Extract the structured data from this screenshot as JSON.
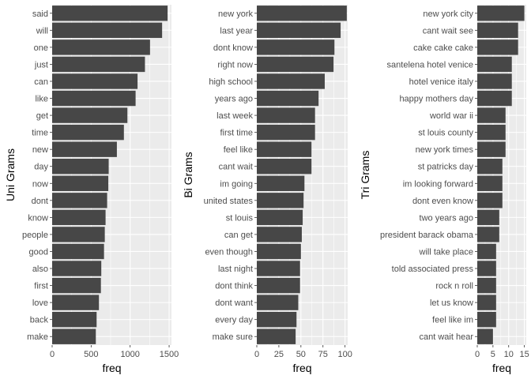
{
  "chart_data": [
    {
      "type": "bar",
      "orientation": "horizontal",
      "ylabel": "Uni Grams",
      "xlabel": "freq",
      "xlim": [
        0,
        1530
      ],
      "xticks": [
        0,
        500,
        1000,
        1500
      ],
      "xtick_labels": [
        "0",
        "500",
        "1000",
        "1500"
      ],
      "grid": true,
      "bar_color": "#474747",
      "panel_color": "#ebebeb",
      "categories": [
        "said",
        "will",
        "one",
        "just",
        "can",
        "like",
        "get",
        "time",
        "new",
        "day",
        "now",
        "dont",
        "know",
        "people",
        "good",
        "also",
        "first",
        "love",
        "back",
        "make"
      ],
      "values": [
        1480,
        1410,
        1255,
        1190,
        1095,
        1070,
        965,
        920,
        830,
        725,
        720,
        705,
        685,
        675,
        665,
        630,
        625,
        600,
        570,
        560
      ]
    },
    {
      "type": "bar",
      "orientation": "horizontal",
      "ylabel": "Bi Grams",
      "xlabel": "freq",
      "xlim": [
        0,
        103
      ],
      "xticks": [
        0,
        25,
        50,
        75,
        100
      ],
      "xtick_labels": [
        "0",
        "25",
        "50",
        "75",
        "100"
      ],
      "grid": true,
      "bar_color": "#474747",
      "panel_color": "#ebebeb",
      "categories": [
        "new york",
        "last year",
        "dont know",
        "right now",
        "high school",
        "years ago",
        "last week",
        "first time",
        "feel like",
        "cant wait",
        "im going",
        "united states",
        "st louis",
        "can get",
        "even though",
        "last night",
        "dont think",
        "dont want",
        "every day",
        "make sure"
      ],
      "values": [
        102,
        95,
        88,
        87,
        77,
        70,
        66,
        66,
        62,
        62,
        54,
        53,
        52,
        51,
        50,
        49,
        49,
        47,
        45,
        44
      ]
    },
    {
      "type": "bar",
      "orientation": "horizontal",
      "ylabel": "Tri Grams",
      "xlabel": "freq",
      "xlim": [
        0,
        15.6
      ],
      "xticks": [
        0,
        5,
        10,
        15
      ],
      "xtick_labels": [
        "0",
        "5",
        "10",
        "15"
      ],
      "grid": true,
      "bar_color": "#474747",
      "panel_color": "#ebebeb",
      "categories": [
        "new york city",
        "cant wait see",
        "cake cake cake",
        "santelena hotel venice",
        "hotel venice italy",
        "happy mothers day",
        "world war ii",
        "st louis county",
        "new york times",
        "st patricks day",
        "im looking forward",
        "dont even know",
        "two years ago",
        "president barack obama",
        "will take place",
        "told associated press",
        "rock n roll",
        "let us know",
        "feel like im",
        "cant wait hear"
      ],
      "values": [
        15,
        13,
        13,
        11,
        11,
        11,
        9,
        9,
        9,
        8,
        8,
        8,
        7,
        7,
        6,
        6,
        6,
        6,
        6,
        5
      ]
    }
  ]
}
